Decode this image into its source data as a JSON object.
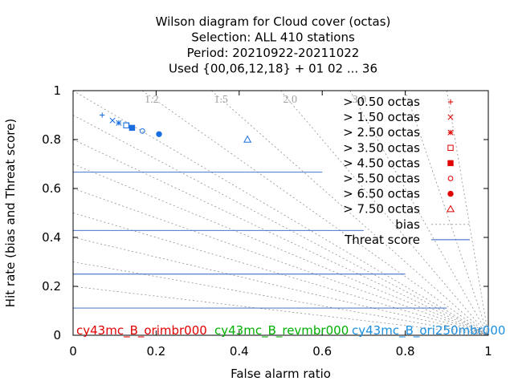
{
  "chart_data": {
    "type": "scatter",
    "title_lines": [
      "Wilson diagram  for Cloud cover (octas)",
      "Selection: ALL    410 stations",
      "Period: 20210922-20211022",
      "Used {00,06,12,18} + 01 02 ... 36"
    ],
    "xlabel": "False alarm ratio",
    "ylabel": "Hit rate (bias and Threat score)",
    "xlim": [
      0,
      1
    ],
    "ylim": [
      0,
      1
    ],
    "x_ticks": [
      "0",
      "0.2",
      "0.4",
      "0.6",
      "0.8",
      "1"
    ],
    "y_ticks": [
      "0",
      "0.2",
      "0.4",
      "0.6",
      "0.8",
      "1"
    ],
    "bias_lines": [
      0.2,
      0.3,
      0.4,
      0.5,
      0.6,
      0.7,
      0.8,
      0.9,
      1.0,
      1.2,
      1.5,
      2.0,
      3.0,
      5.0,
      10.0
    ],
    "bias_labels": [
      "1.2",
      "1.5",
      "2.0",
      "3.0"
    ],
    "threat_score_lines": [
      0.1,
      0.2,
      0.3,
      0.4,
      0.5,
      0.6,
      0.7,
      0.8
    ],
    "series": [
      {
        "name": "> 0.50 octas",
        "marker": "plus",
        "color": "#1a6fe0",
        "x": 0.07,
        "y": 0.9
      },
      {
        "name": "> 1.50 octas",
        "marker": "cross",
        "color": "#1a6fe0",
        "x": 0.095,
        "y": 0.878
      },
      {
        "name": "> 2.50 octas",
        "marker": "star",
        "color": "#1a6fe0",
        "x": 0.11,
        "y": 0.868
      },
      {
        "name": "> 3.50 octas",
        "marker": "square",
        "color": "#1a6fe0",
        "x": 0.128,
        "y": 0.858
      },
      {
        "name": "> 4.50 octas",
        "marker": "square-filled",
        "color": "#1a6fe0",
        "x": 0.142,
        "y": 0.848
      },
      {
        "name": "> 5.50 octas",
        "marker": "circle",
        "color": "#1a6fe0",
        "x": 0.167,
        "y": 0.835
      },
      {
        "name": "> 6.50 octas",
        "marker": "circle-filled",
        "color": "#1a6fe0",
        "x": 0.207,
        "y": 0.822
      },
      {
        "name": "> 7.50 octas",
        "marker": "triangle",
        "color": "#1a6fe0",
        "x": 0.42,
        "y": 0.8
      }
    ],
    "legend_marker_color": "#e00000",
    "legend_extra": [
      {
        "name": "bias",
        "style": "dotted",
        "color": "#a0a0a0"
      },
      {
        "name": "Threat score",
        "style": "solid",
        "color": "#2d5fc4"
      }
    ],
    "legend_position": "top-right",
    "runs": [
      {
        "name": "cy43mc_B_orimbr000",
        "color": "#e00000"
      },
      {
        "name": "cy43mc_B_revmbr000",
        "color": "#00b000"
      },
      {
        "name": "cy43mc_B_ori250mbr000",
        "color": "#1a8fe0"
      }
    ]
  }
}
